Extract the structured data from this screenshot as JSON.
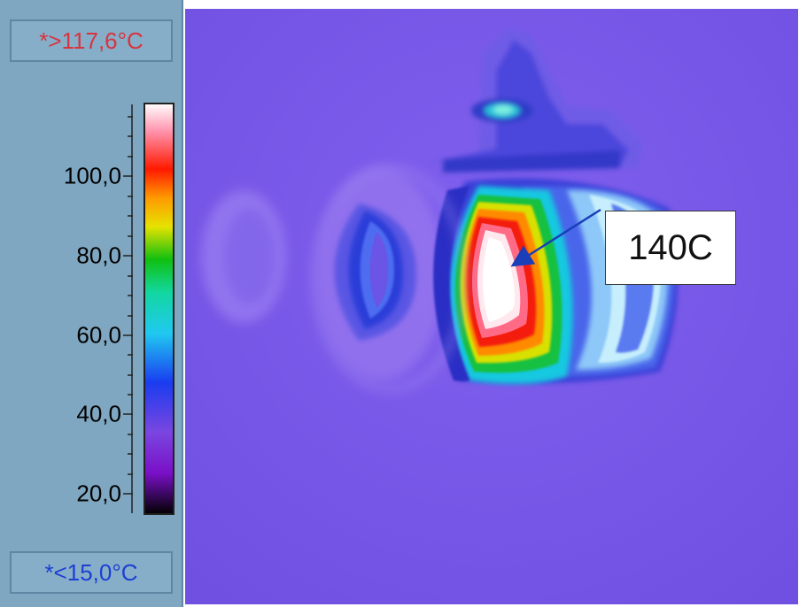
{
  "sidebar": {
    "max_temp": "*>117,6°C",
    "min_temp": "*<15,0°C",
    "scale_labels": [
      "100,0",
      "80,0",
      "60,0",
      "40,0",
      "20,0"
    ]
  },
  "annotation": {
    "label": "140C"
  },
  "colors": {
    "sidebar_bg": "#7fa7c1",
    "max_text": "#d8343e",
    "min_text": "#1d3fd2",
    "background_purple": "#7a5ae8",
    "arrow": "#1a3fb8"
  },
  "colormap": [
    "white",
    "pink",
    "red",
    "orange",
    "yellow",
    "green",
    "cyan",
    "blue",
    "purple",
    "black"
  ]
}
